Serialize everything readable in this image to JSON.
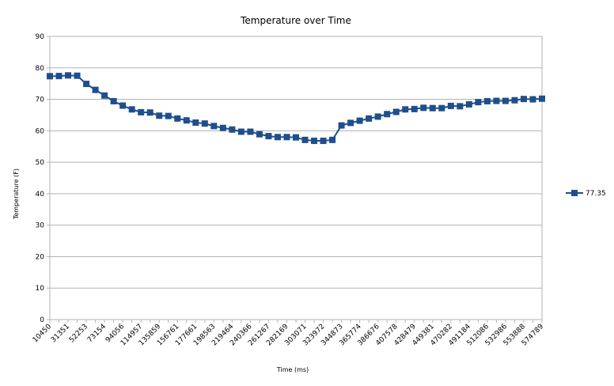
{
  "chart_data": {
    "type": "line",
    "title": "Temperature over Time",
    "xlabel": "Time (ms)",
    "ylabel": "Temperature (F)",
    "ylim": [
      0,
      90
    ],
    "yticks": [
      0,
      10,
      20,
      30,
      40,
      50,
      60,
      70,
      80,
      90
    ],
    "grid": true,
    "legend_position": "right",
    "x_tick_labels": [
      "10450",
      "31351",
      "52253",
      "73154",
      "94056",
      "114957",
      "135859",
      "156761",
      "177661",
      "198563",
      "219464",
      "240366",
      "261267",
      "282169",
      "303071",
      "323972",
      "344873",
      "365774",
      "386676",
      "407578",
      "428479",
      "449381",
      "470282",
      "491184",
      "512086",
      "532986",
      "553888",
      "574789"
    ],
    "series": [
      {
        "name": "77.35",
        "color": "#1f4e8c",
        "values": [
          77.35,
          77.4,
          77.6,
          77.5,
          74.9,
          73.0,
          71.2,
          69.4,
          68.0,
          66.8,
          65.9,
          65.8,
          64.8,
          64.7,
          63.9,
          63.3,
          62.6,
          62.3,
          61.5,
          60.9,
          60.4,
          59.7,
          59.7,
          58.9,
          58.3,
          58.0,
          58.0,
          57.9,
          57.1,
          56.8,
          56.8,
          57.1,
          61.7,
          62.5,
          63.2,
          63.9,
          64.5,
          65.3,
          66.0,
          66.8,
          66.9,
          67.3,
          67.2,
          67.2,
          67.9,
          67.8,
          68.4,
          69.1,
          69.4,
          69.5,
          69.5,
          69.7,
          70.1,
          70.0,
          70.2
        ]
      }
    ]
  }
}
